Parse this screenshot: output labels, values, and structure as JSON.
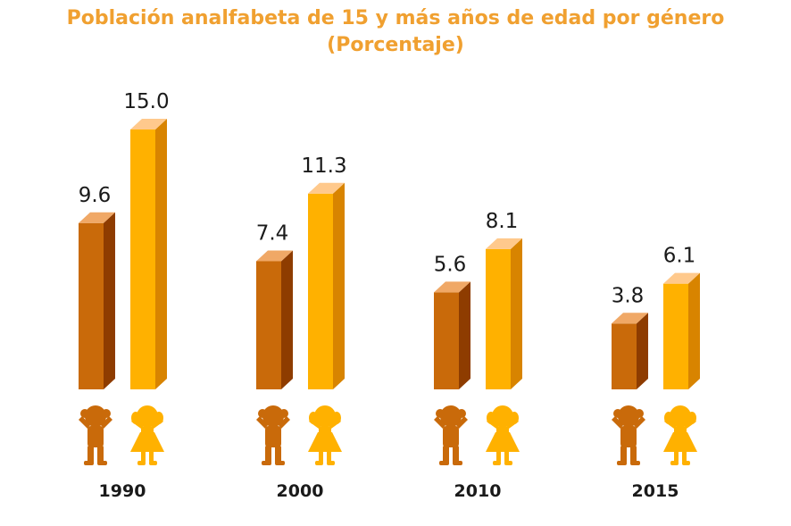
{
  "chart_data": {
    "type": "bar",
    "title": "Población analfabeta de 15 y más años de edad por género",
    "subtitle": "(Porcentaje)",
    "categories": [
      "1990",
      "2000",
      "2010",
      "2015"
    ],
    "series": [
      {
        "values": [
          9.6,
          7.4,
          5.6,
          3.8
        ],
        "color": "#c96a0a",
        "top_color": "#f0a866",
        "side_color": "#8e3c00",
        "icon": "boy-icon"
      },
      {
        "values": [
          15.0,
          11.3,
          8.1,
          6.1
        ],
        "color": "#ffb100",
        "top_color": "#ffc98c",
        "side_color": "#d88400",
        "icon": "girl-icon"
      }
    ],
    "ylim": [
      0,
      15
    ],
    "grid": false,
    "legend": "none"
  }
}
